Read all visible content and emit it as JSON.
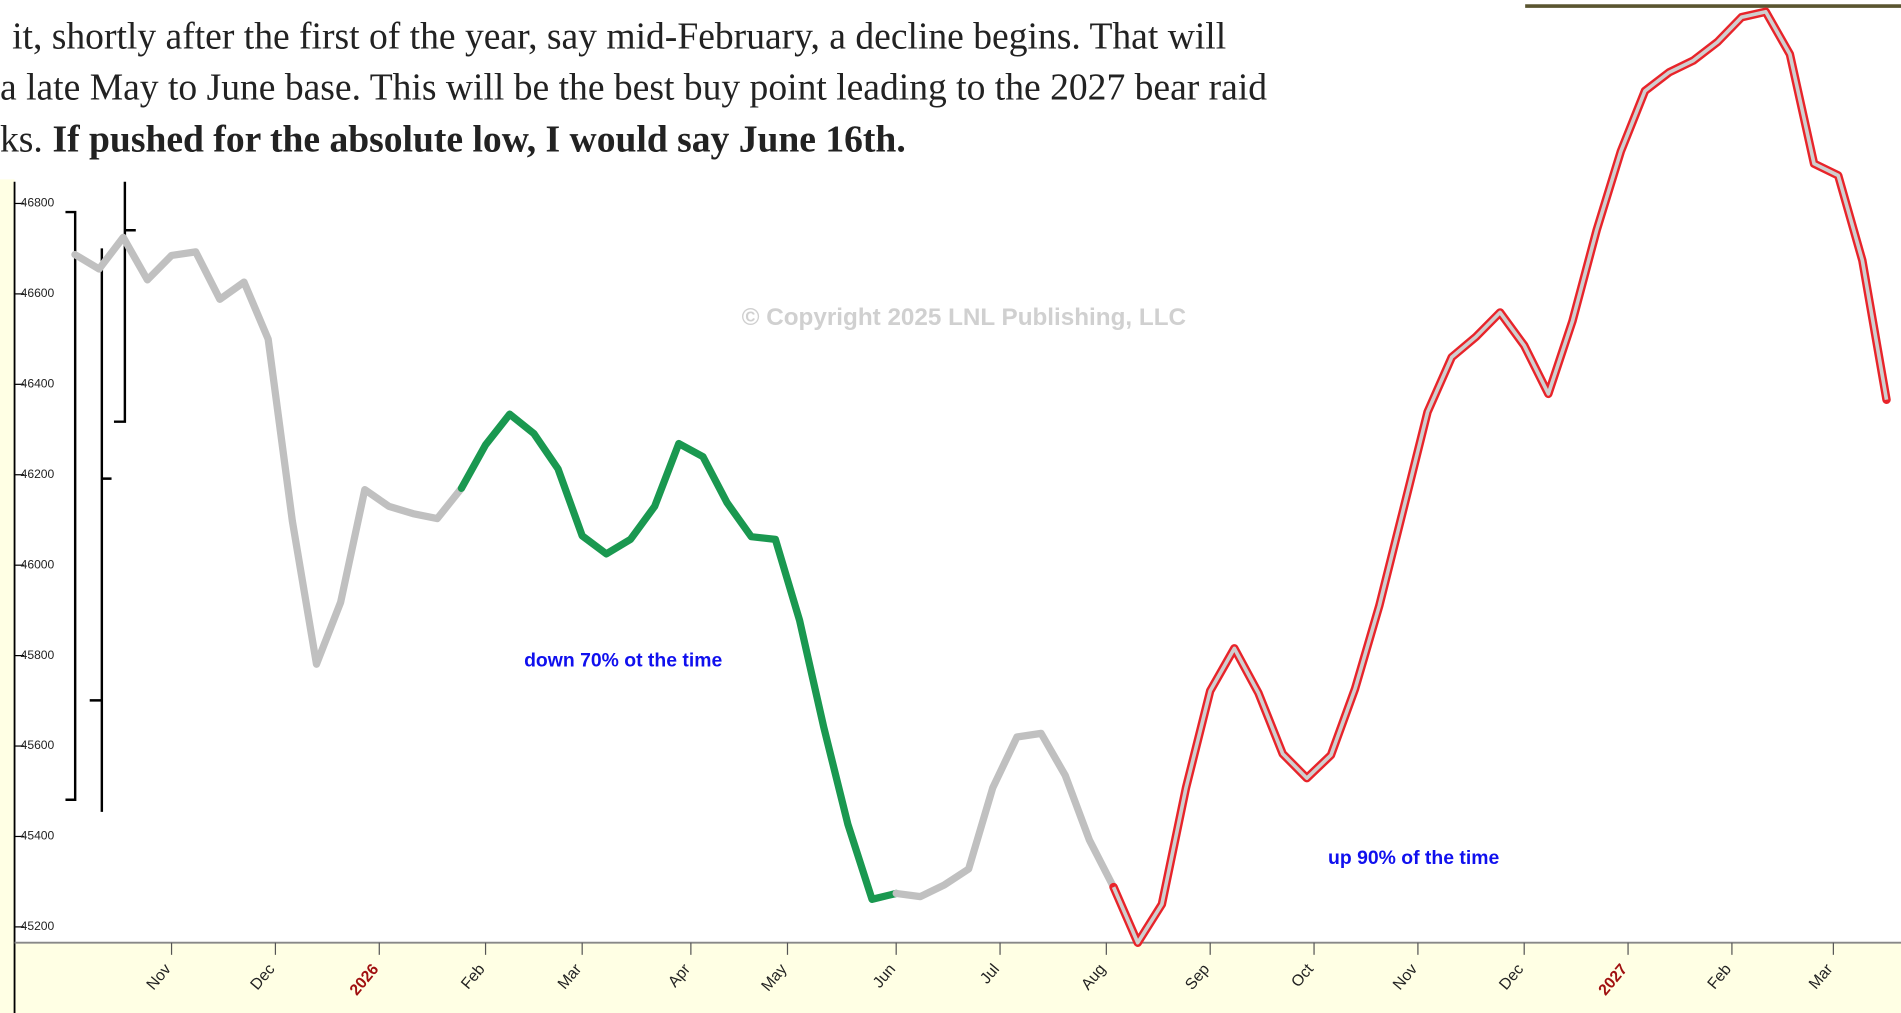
{
  "text": {
    "lines": [
      "it, shortly after the first of the year, say mid-February, a decline begins. That will",
      "a late May to June base. This will be the best buy point leading to the 2027 bear raid",
      "ks."
    ],
    "bold": "If pushed for the absolute low, I would say June 16th."
  },
  "chart_data": {
    "type": "line",
    "watermark": "© Copyright 2025 LNL Publishing, LLC",
    "annotations": [
      "down 70% ot the time",
      "up 90% of the time"
    ],
    "xlim": [
      -2.5,
      75.6
    ],
    "ylim": [
      45165,
      47250
    ],
    "yticks": [
      45200,
      45400,
      45600,
      45800,
      46000,
      46200,
      46400,
      46600,
      46800
    ],
    "xticks": [
      {
        "value": 4,
        "label": "Nov"
      },
      {
        "value": 8.3,
        "label": "Dec"
      },
      {
        "value": 12.6,
        "label": "2026"
      },
      {
        "value": 17,
        "label": "Feb"
      },
      {
        "value": 21,
        "label": "Mar"
      },
      {
        "value": 25.5,
        "label": "Apr"
      },
      {
        "value": 29.5,
        "label": "May"
      },
      {
        "value": 34,
        "label": "Jun"
      },
      {
        "value": 38.3,
        "label": "Jul"
      },
      {
        "value": 42.7,
        "label": "Aug"
      },
      {
        "value": 47,
        "label": "Sep"
      },
      {
        "value": 51.3,
        "label": "Oct"
      },
      {
        "value": 55.6,
        "label": "Nov"
      },
      {
        "value": 60,
        "label": "Dec"
      },
      {
        "value": 64.3,
        "label": "2027"
      },
      {
        "value": 68.6,
        "label": "Feb"
      },
      {
        "value": 72.8,
        "label": "Mar"
      }
    ],
    "series": [
      {
        "color": "#c0c0c0",
        "x": [
          0,
          1,
          2,
          3,
          4,
          5,
          6,
          7,
          8,
          9,
          10,
          11,
          12,
          13,
          14,
          15,
          16
        ],
        "values": [
          46687,
          46655,
          46725,
          46631,
          46685,
          46693,
          46588,
          46626,
          46500,
          46098,
          45781,
          45918,
          46167,
          46130,
          46114,
          46103,
          46170
        ]
      },
      {
        "color": "#1a9850",
        "x": [
          16,
          17,
          18,
          19,
          20,
          21,
          22,
          23,
          24,
          25,
          26,
          27,
          28,
          29,
          30,
          31,
          32,
          33,
          34
        ],
        "values": [
          46170,
          46266,
          46334,
          46291,
          46213,
          46065,
          46025,
          46057,
          46130,
          46269,
          46240,
          46138,
          46063,
          46057,
          45878,
          45642,
          45427,
          45261,
          45274
        ]
      },
      {
        "color": "#c0c0c0",
        "x": [
          34,
          35,
          36,
          37,
          38,
          39,
          40,
          41,
          42,
          43
        ],
        "values": [
          45274,
          45267,
          45293,
          45328,
          45508,
          45620,
          45628,
          45535,
          45392,
          45288
        ]
      },
      {
        "color": "#e8242a",
        "x": [
          43,
          44,
          45,
          46,
          47,
          48,
          49,
          50,
          51,
          52,
          53,
          54,
          55,
          56,
          57,
          58,
          59,
          60,
          61,
          62,
          63,
          64,
          65,
          66,
          67,
          68,
          69,
          70,
          71,
          72,
          73,
          74,
          75
        ],
        "values": [
          45288,
          45165,
          45250,
          45508,
          45722,
          45816,
          45717,
          45583,
          45529,
          45580,
          45727,
          45910,
          46124,
          46339,
          46460,
          46505,
          46559,
          46486,
          46379,
          46540,
          46741,
          46915,
          47049,
          47090,
          47116,
          47157,
          47212,
          47224,
          47130,
          46888,
          46862,
          46674,
          46366
        ]
      }
    ]
  }
}
